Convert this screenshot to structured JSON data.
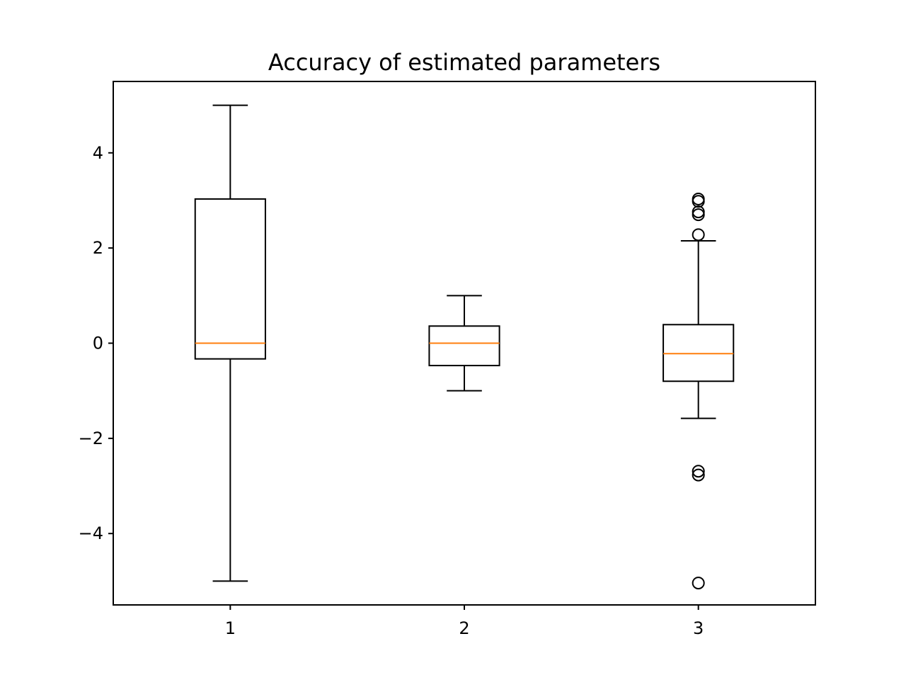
{
  "chart_data": {
    "type": "boxplot",
    "title": "Accuracy of estimated parameters",
    "xlabel": "",
    "ylabel": "",
    "categories": [
      "1",
      "2",
      "3"
    ],
    "ylim": [
      -5.5,
      5.5
    ],
    "yticks": [
      {
        "value": 4,
        "label": "4"
      },
      {
        "value": 2,
        "label": "2"
      },
      {
        "value": 0,
        "label": "0"
      },
      {
        "value": -2,
        "label": "−2"
      },
      {
        "value": -4,
        "label": "−4"
      }
    ],
    "boxes": [
      {
        "label": "1",
        "whisker_low": -5.0,
        "q1": -0.33,
        "median": 0.0,
        "q3": 3.03,
        "whisker_high": 5.0,
        "outliers": []
      },
      {
        "label": "2",
        "whisker_low": -1.0,
        "q1": -0.47,
        "median": 0.0,
        "q3": 0.36,
        "whisker_high": 1.0,
        "outliers": []
      },
      {
        "label": "3",
        "whisker_low": -1.58,
        "q1": -0.8,
        "median": -0.22,
        "q3": 0.39,
        "whisker_high": 2.15,
        "outliers": [
          3.03,
          2.98,
          2.76,
          2.7,
          2.28,
          -2.69,
          -2.77,
          -5.04
        ]
      }
    ],
    "colors": {
      "box": "#000000",
      "median": "#ff7f0e",
      "axes": "#000000"
    },
    "grid": false
  }
}
